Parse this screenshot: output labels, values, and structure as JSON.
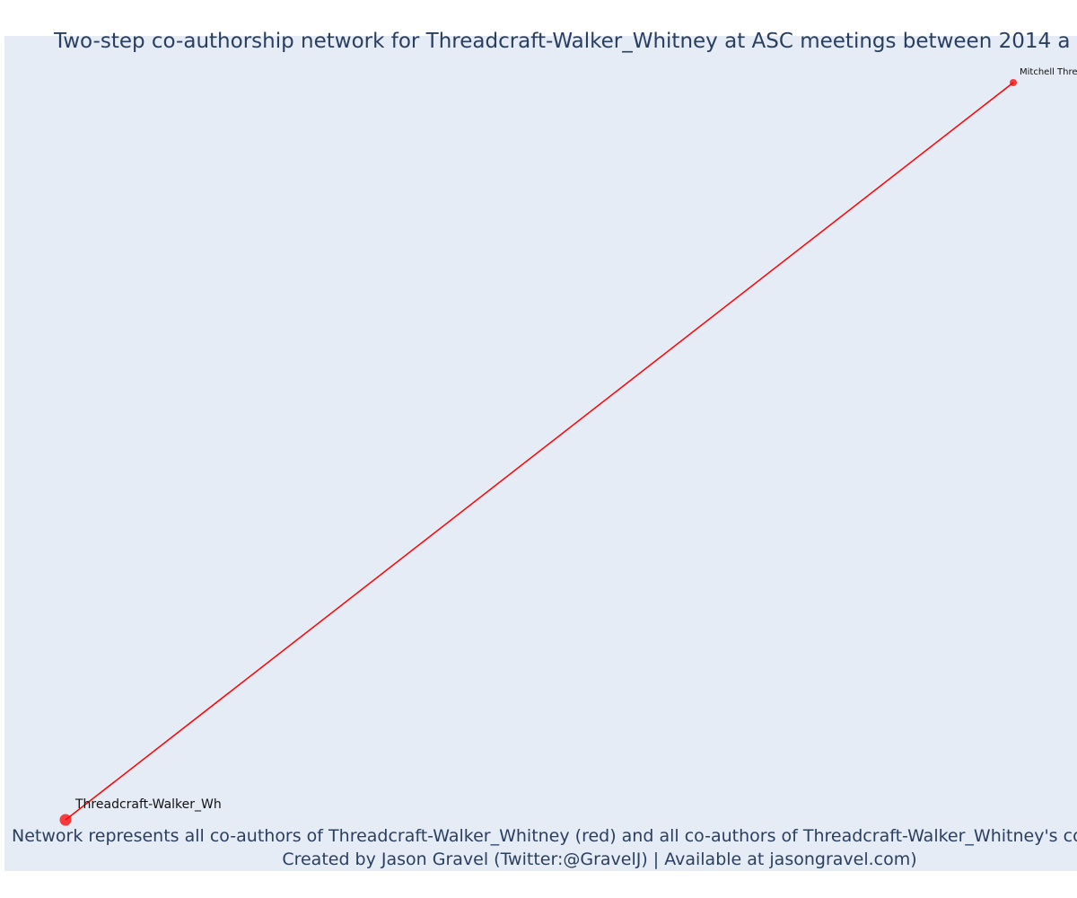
{
  "title": "Two-step co-authorship network for Threadcraft-Walker_Whitney at ASC meetings between 2014 a",
  "nodes": [
    {
      "label": "Mitchell Thre"
    },
    {
      "label": "Threadcraft-Walker_Wh"
    }
  ],
  "footer": {
    "line1": "Network represents all co-authors of Threadcraft-Walker_Whitney (red) and all co-authors of Threadcraft-Walker_Whitney's co-a",
    "line2": "Created by Jason Gravel (Twitter:@GravelJ) | Available at jasongravel.com)"
  }
}
